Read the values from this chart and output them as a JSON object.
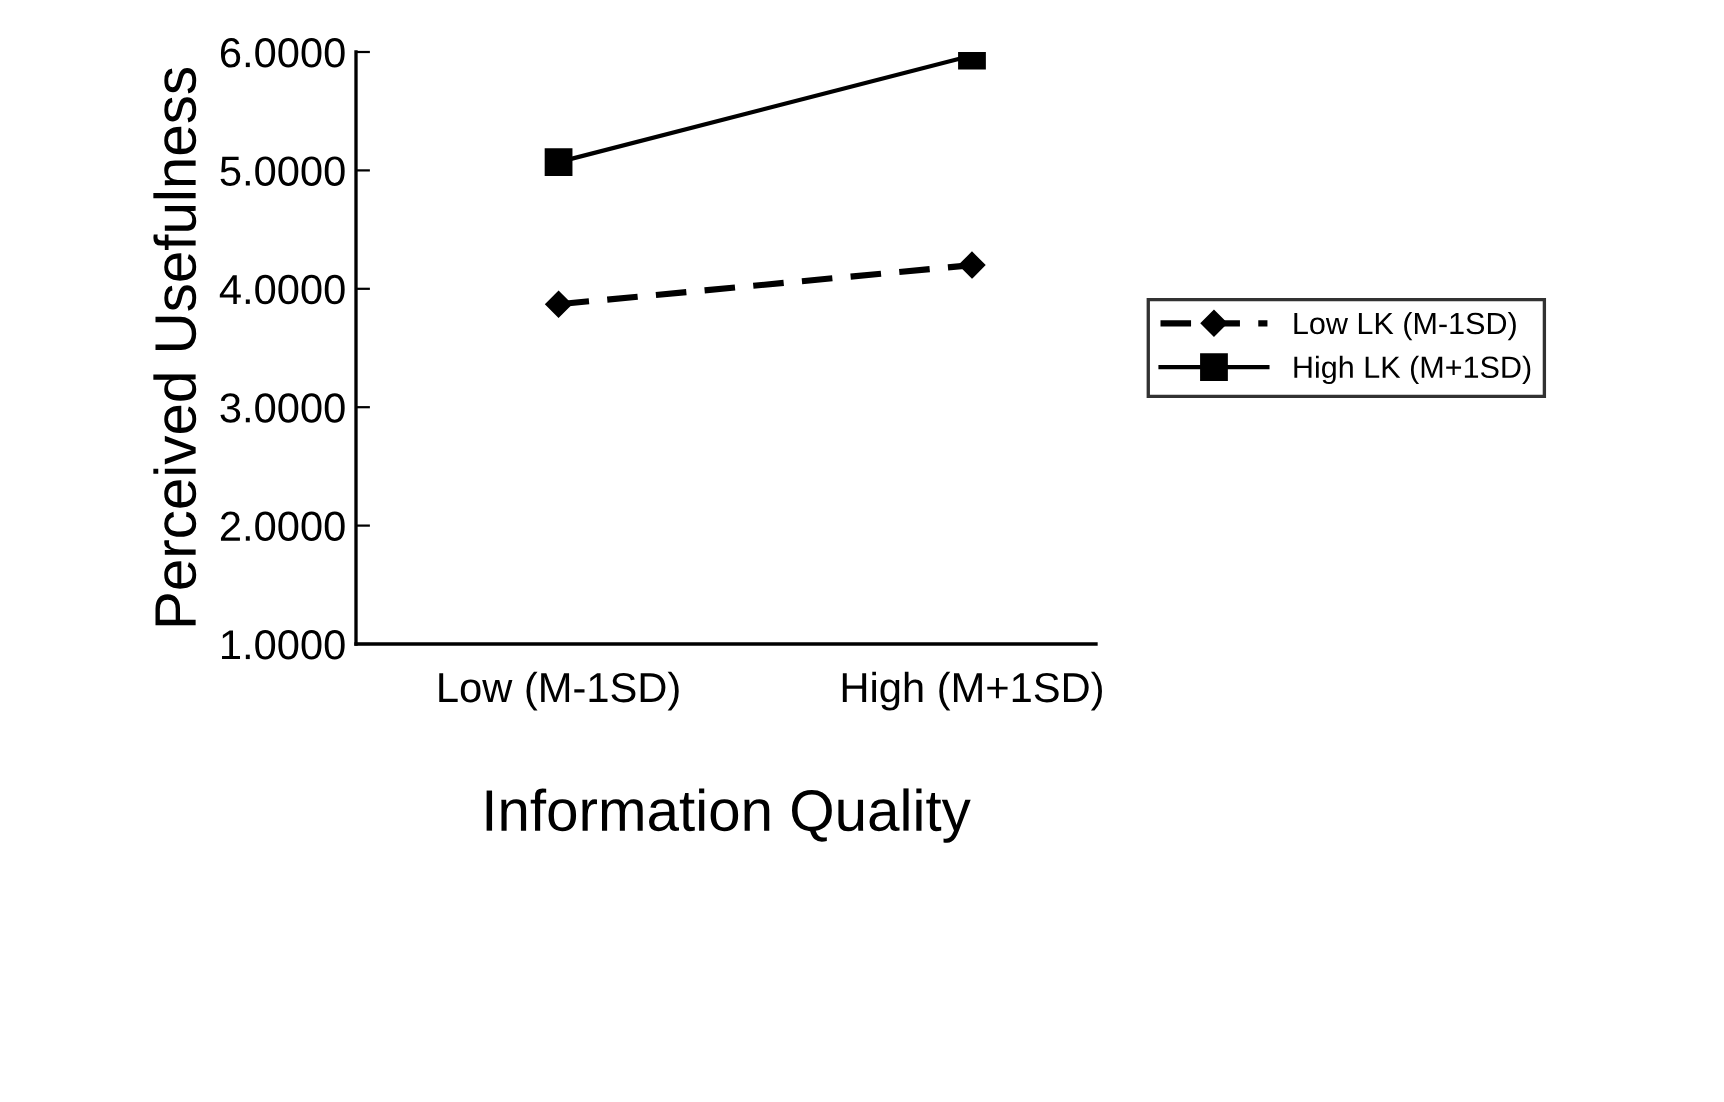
{
  "chart_data": {
    "type": "line",
    "xlabel": "Information Quality",
    "ylabel": "Perceived Usefulness",
    "categories": [
      "Low (M-1SD)",
      "High (M+1SD)"
    ],
    "series": [
      {
        "name": "Low LK (M-1SD)",
        "color": "#000000",
        "values": [
          3.87,
          4.2
        ],
        "marker": "diamond",
        "line_style": "dashed"
      },
      {
        "name": "High LK (M+1SD)",
        "color": "#000000",
        "values": [
          5.07,
          5.97
        ],
        "marker": "square",
        "line_style": "solid"
      }
    ],
    "ylim": [
      1,
      6
    ],
    "yticks": [
      {
        "value": 1,
        "label": "1.0000"
      },
      {
        "value": 2,
        "label": "2.0000"
      },
      {
        "value": 3,
        "label": "3.0000"
      },
      {
        "value": 4,
        "label": "4.0000"
      },
      {
        "value": 5,
        "label": "5.0000"
      },
      {
        "value": 6,
        "label": "6.0000"
      }
    ],
    "grid": false,
    "legend": "right"
  }
}
